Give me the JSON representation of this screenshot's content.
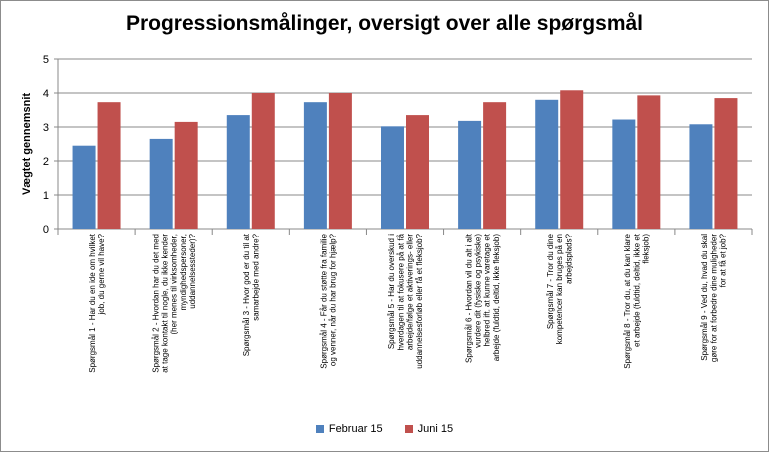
{
  "chart_data": {
    "type": "bar",
    "title": "Progressionsmålinger, oversigt over alle spørgsmål",
    "ylabel": "Vægtet gennemsnit",
    "ylim": [
      0,
      5
    ],
    "yticks": [
      "0",
      "1",
      "2",
      "3",
      "4",
      "5"
    ],
    "grid": true,
    "legend_position": "bottom",
    "categories": [
      [
        "Spørgsmål 1 - Har du en ide om hvilket",
        "job, du gerne vil have?"
      ],
      [
        "Spørgsmål 2 - Hvordan har du det med",
        "at tage kontakt til nogle, du ikke kender",
        "(her menes til virksomheder,",
        "myndighedspersoner,",
        "uddannelsessteder)?"
      ],
      [
        "Spørgsmål 3 - Hvor god er du til at",
        "samarbejde med andre?"
      ],
      [
        "Spørgsmål 4 - Får du støtte fra familie",
        "og venner, når du har brug for hjælp?"
      ],
      [
        "Spørgsmål 5 - Har du overskud i",
        "hverdagen til at fokusere på at få",
        "arbejde/følge et aktiverings- eller",
        "uddannelsesforløb eller få et fleksjob?"
      ],
      [
        "Spørgsmål 6 - Hvordan vil du alt i alt",
        "vurdere dit (fysiske og psykiske)",
        "helbred ift. at kunne varetage et",
        "arbejde (fuldtid, deltid, ikke fleksjob)"
      ],
      [
        "Spørgsmål 7 - Tror du dine",
        "kompetencer kan bruges på en",
        "arbejdsplads?"
      ],
      [
        "Spørgsmål 8 - Tror du, at du kan klare",
        "et arbejde (fuldtid, deltid, ikke et",
        "fleksjob)"
      ],
      [
        "Spørgsmål 9 - Ved du, hvad du skal",
        "gøre for at forbedre dine muligheder",
        "for at få et job?"
      ]
    ],
    "series": [
      {
        "name": "Februar 15",
        "color": "#4f81bd",
        "values": [
          2.45,
          2.65,
          3.35,
          3.73,
          3.02,
          3.18,
          3.8,
          3.22,
          3.08
        ]
      },
      {
        "name": "Juni 15",
        "color": "#c0504d",
        "values": [
          3.73,
          3.15,
          4.0,
          4.0,
          3.35,
          3.73,
          4.08,
          3.93,
          3.85
        ]
      }
    ]
  }
}
